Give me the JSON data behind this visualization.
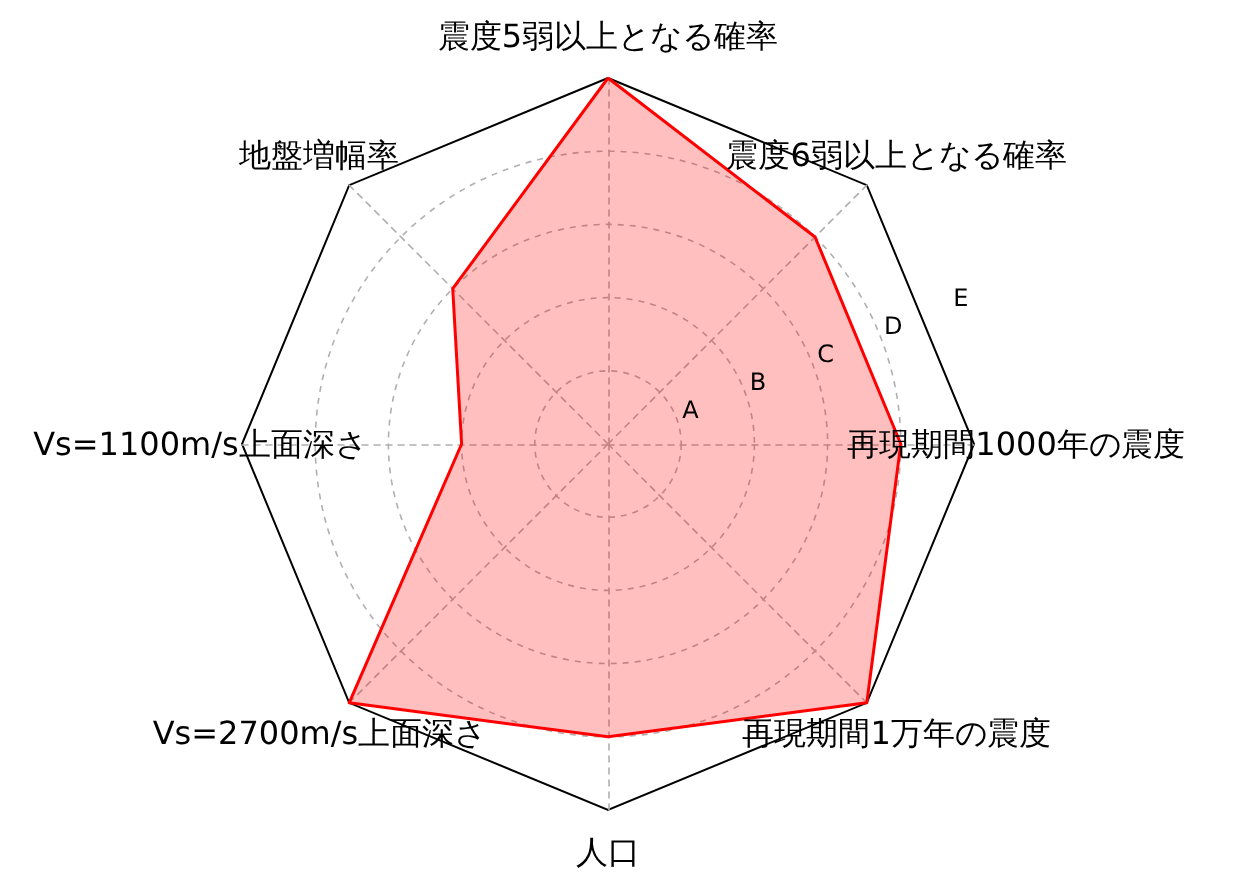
{
  "chart_data": {
    "type": "radar",
    "categories": [
      "震度5弱以上となる確率",
      "震度6弱以上となる確率",
      "再現期間1000年の震度",
      "再現期間1万年の震度",
      "人口",
      "Vs=2700m/s上面深さ",
      "Vs=1100m/s上面深さ",
      "地盤増幅率"
    ],
    "series": [
      {
        "color": "#ff0000",
        "values": [
          5,
          4,
          4,
          5,
          4,
          5,
          2,
          3
        ]
      }
    ],
    "ylim": [
      0,
      5
    ],
    "yticks": [
      {
        "value": 1,
        "label": "A"
      },
      {
        "value": 2,
        "label": "B"
      },
      {
        "value": 3,
        "label": "C"
      },
      {
        "value": 4,
        "label": "D"
      },
      {
        "value": 5,
        "label": "E"
      }
    ],
    "grid": true
  }
}
